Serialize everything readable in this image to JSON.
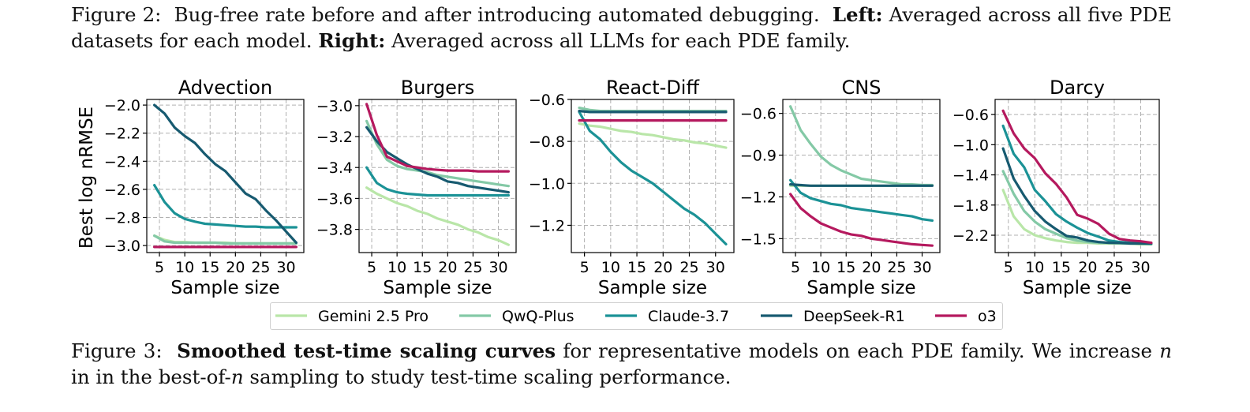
{
  "figure2_caption": {
    "label": "Figure 2:",
    "text1": "Bug-free rate before and after introducing automated debugging.",
    "left_bold": "Left:",
    "left_text": "Averaged across all five PDE datasets for each model.",
    "right_bold": "Right:",
    "right_text": "Averaged across all LLMs for each PDE family."
  },
  "figure3_caption": {
    "label": "Figure 3:",
    "bold": "Smoothed test-time scaling curves",
    "text1": "for representative models on each PDE family. We increase",
    "n": "n",
    "text2": "in the best-of-",
    "n2": "n",
    "text3": "sampling to study test-time scaling performance."
  },
  "colors": {
    "Gemini 2.5 Pro": "#b9e6a8",
    "QwQ-Plus": "#84c9a6",
    "Claude-3.7": "#1b9296",
    "DeepSeek-R1": "#175a70",
    "o3": "#b5195e"
  },
  "legend": [
    "Gemini 2.5 Pro",
    "QwQ-Plus",
    "Claude-3.7",
    "DeepSeek-R1",
    "o3"
  ],
  "chart_data": [
    {
      "type": "line",
      "title": "Advection",
      "xlabel": "Sample size",
      "ylabel": "Best log nRMSE",
      "x": [
        4,
        6,
        8,
        10,
        12,
        14,
        16,
        18,
        20,
        22,
        24,
        26,
        28,
        30,
        32
      ],
      "xticks": [
        5,
        10,
        15,
        20,
        25,
        30
      ],
      "yticks": [
        "−2.0",
        "−2.2",
        "−2.4",
        "−2.6",
        "−2.8",
        "−3.0"
      ],
      "ytick_values": [
        -2.0,
        -2.2,
        -2.4,
        -2.6,
        -2.8,
        -3.0
      ],
      "xlim": [
        2.5,
        33.5
      ],
      "ylim": [
        -3.05,
        -1.96
      ],
      "grid": true,
      "series": [
        {
          "name": "Gemini 2.5 Pro",
          "values": [
            -2.93,
            -2.96,
            -2.975,
            -2.975,
            -2.98,
            -2.98,
            -2.98,
            -2.98,
            -2.985,
            -2.985,
            -2.985,
            -2.985,
            -2.985,
            -2.985,
            -2.985
          ]
        },
        {
          "name": "QwQ-Plus",
          "values": [
            -2.93,
            -2.97,
            -2.98,
            -2.98,
            -2.98,
            -2.98,
            -2.98,
            -2.985,
            -2.985,
            -2.985,
            -2.985,
            -2.985,
            -2.985,
            -2.985,
            -2.985
          ]
        },
        {
          "name": "Claude-3.7",
          "values": [
            -2.57,
            -2.69,
            -2.77,
            -2.81,
            -2.83,
            -2.845,
            -2.85,
            -2.855,
            -2.86,
            -2.865,
            -2.865,
            -2.87,
            -2.87,
            -2.87,
            -2.87
          ]
        },
        {
          "name": "DeepSeek-R1",
          "values": [
            -2.0,
            -2.06,
            -2.16,
            -2.22,
            -2.27,
            -2.35,
            -2.42,
            -2.47,
            -2.55,
            -2.63,
            -2.67,
            -2.75,
            -2.82,
            -2.9,
            -2.98
          ]
        },
        {
          "name": "o3",
          "values": [
            -3.01,
            -3.01,
            -3.01,
            -3.01,
            -3.01,
            -3.01,
            -3.01,
            -3.01,
            -3.01,
            -3.01,
            -3.01,
            -3.01,
            -3.01,
            -3.01,
            -3.01
          ]
        }
      ]
    },
    {
      "type": "line",
      "title": "Burgers",
      "xlabel": "Sample size",
      "ylabel": "",
      "x": [
        4,
        6,
        8,
        10,
        12,
        14,
        16,
        18,
        20,
        22,
        24,
        26,
        28,
        30,
        32
      ],
      "xticks": [
        5,
        10,
        15,
        20,
        25,
        30
      ],
      "yticks": [
        "−3.0",
        "−3.2",
        "−3.4",
        "−3.6",
        "−3.8"
      ],
      "ytick_values": [
        -3.0,
        -3.2,
        -3.4,
        -3.6,
        -3.8
      ],
      "xlim": [
        2.5,
        33.5
      ],
      "ylim": [
        -3.95,
        -2.96
      ],
      "grid": true,
      "series": [
        {
          "name": "Gemini 2.5 Pro",
          "values": [
            -3.53,
            -3.57,
            -3.6,
            -3.63,
            -3.65,
            -3.68,
            -3.7,
            -3.73,
            -3.75,
            -3.77,
            -3.8,
            -3.82,
            -3.85,
            -3.87,
            -3.9
          ]
        },
        {
          "name": "QwQ-Plus",
          "values": [
            -3.1,
            -3.25,
            -3.35,
            -3.39,
            -3.41,
            -3.42,
            -3.43,
            -3.45,
            -3.46,
            -3.47,
            -3.48,
            -3.49,
            -3.5,
            -3.51,
            -3.52
          ]
        },
        {
          "name": "Claude-3.7",
          "values": [
            -3.4,
            -3.5,
            -3.54,
            -3.56,
            -3.57,
            -3.575,
            -3.58,
            -3.58,
            -3.58,
            -3.58,
            -3.58,
            -3.58,
            -3.58,
            -3.58,
            -3.58
          ]
        },
        {
          "name": "DeepSeek-R1",
          "values": [
            -3.14,
            -3.23,
            -3.3,
            -3.34,
            -3.38,
            -3.41,
            -3.44,
            -3.46,
            -3.49,
            -3.5,
            -3.52,
            -3.53,
            -3.54,
            -3.55,
            -3.56
          ]
        },
        {
          "name": "o3",
          "values": [
            -2.99,
            -3.19,
            -3.33,
            -3.36,
            -3.39,
            -3.4,
            -3.41,
            -3.415,
            -3.42,
            -3.42,
            -3.42,
            -3.425,
            -3.425,
            -3.425,
            -3.425
          ]
        }
      ]
    },
    {
      "type": "line",
      "title": "React-Diff",
      "xlabel": "Sample size",
      "ylabel": "",
      "x": [
        4,
        6,
        8,
        10,
        12,
        14,
        16,
        18,
        20,
        22,
        24,
        26,
        28,
        30,
        32
      ],
      "xticks": [
        5,
        10,
        15,
        20,
        25,
        30
      ],
      "yticks": [
        "−0.6",
        "−0.8",
        "−1.0",
        "−1.2"
      ],
      "ytick_values": [
        -0.6,
        -0.8,
        -1.0,
        -1.2
      ],
      "xlim": [
        2.5,
        33.5
      ],
      "ylim": [
        -1.33,
        -0.6
      ],
      "grid": true,
      "series": [
        {
          "name": "Gemini 2.5 Pro",
          "values": [
            -0.715,
            -0.725,
            -0.73,
            -0.74,
            -0.75,
            -0.755,
            -0.765,
            -0.77,
            -0.78,
            -0.79,
            -0.795,
            -0.805,
            -0.81,
            -0.82,
            -0.83
          ]
        },
        {
          "name": "QwQ-Plus",
          "values": [
            -0.64,
            -0.65,
            -0.655,
            -0.655,
            -0.655,
            -0.655,
            -0.655,
            -0.655,
            -0.655,
            -0.655,
            -0.655,
            -0.655,
            -0.655,
            -0.655,
            -0.655
          ]
        },
        {
          "name": "Claude-3.7",
          "values": [
            -0.66,
            -0.75,
            -0.79,
            -0.85,
            -0.9,
            -0.94,
            -0.97,
            -1.0,
            -1.04,
            -1.08,
            -1.12,
            -1.15,
            -1.19,
            -1.24,
            -1.29
          ]
        },
        {
          "name": "DeepSeek-R1",
          "values": [
            -0.655,
            -0.66,
            -0.66,
            -0.66,
            -0.66,
            -0.66,
            -0.66,
            -0.66,
            -0.66,
            -0.66,
            -0.66,
            -0.66,
            -0.66,
            -0.66,
            -0.66
          ]
        },
        {
          "name": "o3",
          "values": [
            -0.7,
            -0.7,
            -0.7,
            -0.7,
            -0.7,
            -0.7,
            -0.7,
            -0.7,
            -0.7,
            -0.7,
            -0.7,
            -0.7,
            -0.7,
            -0.7,
            -0.7
          ]
        }
      ]
    },
    {
      "type": "line",
      "title": "CNS",
      "xlabel": "Sample size",
      "ylabel": "",
      "x": [
        4,
        6,
        8,
        10,
        12,
        14,
        16,
        18,
        20,
        22,
        24,
        26,
        28,
        30,
        32
      ],
      "xticks": [
        5,
        10,
        15,
        20,
        25,
        30
      ],
      "yticks": [
        "−0.6",
        "−0.9",
        "−1.2",
        "−1.5"
      ],
      "ytick_values": [
        -0.6,
        -0.9,
        -1.2,
        -1.5
      ],
      "xlim": [
        2.5,
        33.5
      ],
      "ylim": [
        -1.6,
        -0.5
      ],
      "grid": true,
      "series": [
        {
          "name": "Gemini 2.5 Pro",
          "values": [
            -1.12,
            -1.12,
            -1.12,
            -1.12,
            -1.12,
            -1.12,
            -1.12,
            -1.12,
            -1.12,
            -1.12,
            -1.12,
            -1.12,
            -1.12,
            -1.12,
            -1.12
          ]
        },
        {
          "name": "QwQ-Plus",
          "values": [
            -0.55,
            -0.72,
            -0.82,
            -0.91,
            -0.97,
            -1.01,
            -1.04,
            -1.07,
            -1.08,
            -1.09,
            -1.1,
            -1.11,
            -1.11,
            -1.115,
            -1.115
          ]
        },
        {
          "name": "Claude-3.7",
          "values": [
            -1.08,
            -1.17,
            -1.21,
            -1.23,
            -1.25,
            -1.26,
            -1.28,
            -1.29,
            -1.3,
            -1.31,
            -1.32,
            -1.33,
            -1.34,
            -1.36,
            -1.37
          ]
        },
        {
          "name": "DeepSeek-R1",
          "values": [
            -1.11,
            -1.115,
            -1.12,
            -1.12,
            -1.12,
            -1.12,
            -1.12,
            -1.12,
            -1.12,
            -1.12,
            -1.12,
            -1.12,
            -1.12,
            -1.12,
            -1.12
          ]
        },
        {
          "name": "o3",
          "values": [
            -1.18,
            -1.28,
            -1.34,
            -1.39,
            -1.42,
            -1.45,
            -1.47,
            -1.48,
            -1.5,
            -1.51,
            -1.52,
            -1.53,
            -1.54,
            -1.545,
            -1.55
          ]
        }
      ]
    },
    {
      "type": "line",
      "title": "Darcy",
      "xlabel": "Sample size",
      "ylabel": "",
      "x": [
        4,
        6,
        8,
        10,
        12,
        14,
        16,
        18,
        20,
        22,
        24,
        26,
        28,
        30,
        32
      ],
      "xticks": [
        5,
        10,
        15,
        20,
        25,
        30
      ],
      "yticks": [
        "−0.6",
        "−1.0",
        "−1.4",
        "−1.8",
        "−2.2"
      ],
      "ytick_values": [
        -0.6,
        -1.0,
        -1.4,
        -1.8,
        -2.2
      ],
      "xlim": [
        2.5,
        33.5
      ],
      "ylim": [
        -2.43,
        -0.4
      ],
      "grid": true,
      "series": [
        {
          "name": "Gemini 2.5 Pro",
          "values": [
            -1.6,
            -1.95,
            -2.12,
            -2.2,
            -2.24,
            -2.27,
            -2.29,
            -2.3,
            -2.3,
            -2.31,
            -2.31,
            -2.31,
            -2.31,
            -2.32,
            -2.32
          ]
        },
        {
          "name": "QwQ-Plus",
          "values": [
            -1.35,
            -1.65,
            -1.88,
            -2.02,
            -2.12,
            -2.18,
            -2.24,
            -2.27,
            -2.29,
            -2.3,
            -2.3,
            -2.31,
            -2.31,
            -2.31,
            -2.32
          ]
        },
        {
          "name": "Claude-3.7",
          "values": [
            -0.75,
            -1.12,
            -1.3,
            -1.6,
            -1.75,
            -1.92,
            -2.02,
            -2.1,
            -2.17,
            -2.22,
            -2.27,
            -2.29,
            -2.3,
            -2.31,
            -2.31
          ]
        },
        {
          "name": "DeepSeek-R1",
          "values": [
            -1.05,
            -1.45,
            -1.68,
            -1.88,
            -2.02,
            -2.12,
            -2.21,
            -2.23,
            -2.27,
            -2.29,
            -2.3,
            -2.3,
            -2.31,
            -2.31,
            -2.31
          ]
        },
        {
          "name": "o3",
          "values": [
            -0.55,
            -0.85,
            -1.05,
            -1.18,
            -1.38,
            -1.52,
            -1.7,
            -1.93,
            -1.98,
            -2.05,
            -2.18,
            -2.25,
            -2.27,
            -2.28,
            -2.3
          ]
        }
      ]
    }
  ]
}
